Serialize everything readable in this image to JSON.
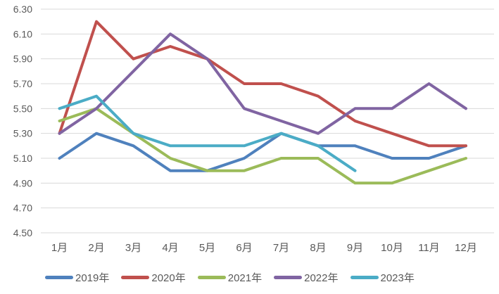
{
  "chart_data": {
    "type": "line",
    "title": "",
    "xlabel": "",
    "ylabel": "",
    "categories": [
      "1月",
      "2月",
      "3月",
      "4月",
      "5月",
      "6月",
      "7月",
      "8月",
      "9月",
      "10月",
      "11月",
      "12月"
    ],
    "series": [
      {
        "name": "2019年",
        "color": "#4F81BD",
        "values": [
          5.1,
          5.3,
          5.2,
          5.0,
          5.0,
          5.1,
          5.3,
          5.2,
          5.2,
          5.1,
          5.1,
          5.2
        ]
      },
      {
        "name": "2020年",
        "color": "#C0504D",
        "values": [
          5.3,
          6.2,
          5.9,
          6.0,
          5.9,
          5.7,
          5.7,
          5.6,
          5.4,
          5.3,
          5.2,
          5.2
        ]
      },
      {
        "name": "2021年",
        "color": "#9BBB59",
        "values": [
          5.4,
          5.5,
          5.3,
          5.1,
          5.0,
          5.0,
          5.1,
          5.1,
          4.9,
          4.9,
          5.0,
          5.1
        ]
      },
      {
        "name": "2022年",
        "color": "#8064A2",
        "values": [
          5.3,
          5.5,
          5.8,
          6.1,
          5.9,
          5.5,
          5.4,
          5.3,
          5.5,
          5.5,
          5.7,
          5.5
        ]
      },
      {
        "name": "2023年",
        "color": "#4BACC6",
        "values": [
          5.5,
          5.6,
          5.3,
          5.2,
          5.2,
          5.2,
          5.3,
          5.2,
          5.0,
          null,
          null,
          null
        ]
      }
    ],
    "yticks": [
      "6.30",
      "6.10",
      "5.90",
      "5.70",
      "5.50",
      "5.30",
      "5.10",
      "4.90",
      "4.70",
      "4.50"
    ],
    "ylim": [
      4.5,
      6.3
    ],
    "ytick_step": 0.2,
    "grid": true,
    "grid_color": "#D9D9D9",
    "axis_text_color": "#595959",
    "background": "#FFFFFF",
    "legend_position": "bottom"
  }
}
